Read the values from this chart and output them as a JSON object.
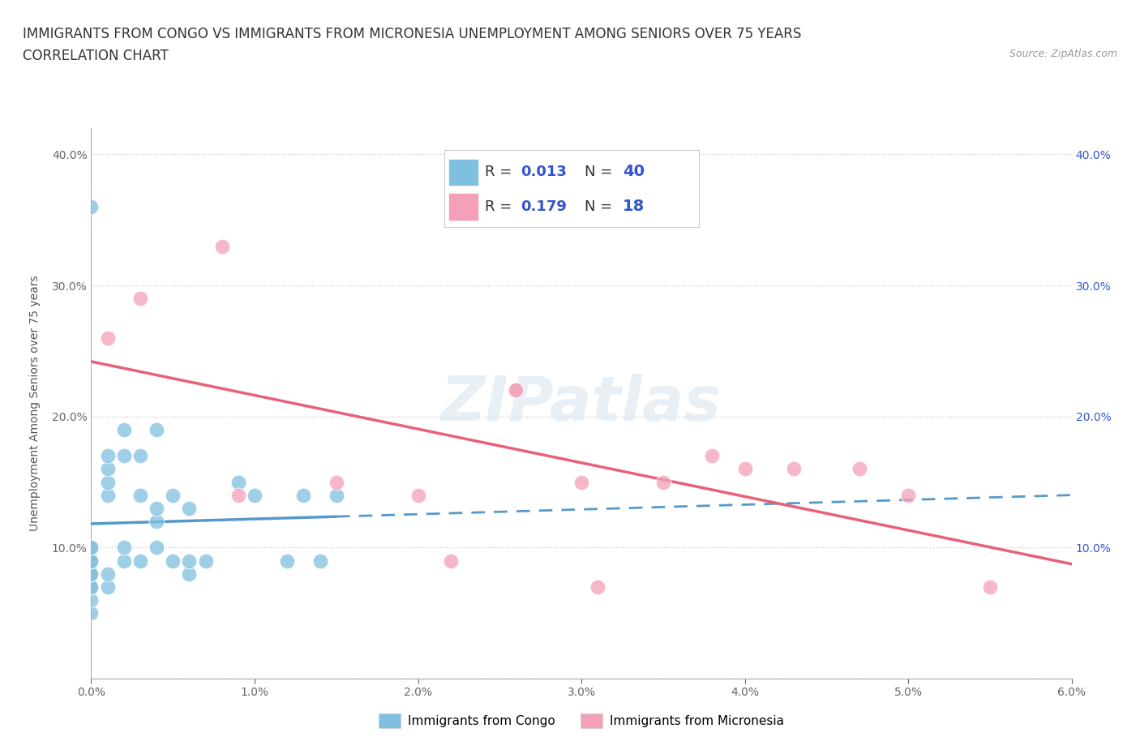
{
  "title_line1": "IMMIGRANTS FROM CONGO VS IMMIGRANTS FROM MICRONESIA UNEMPLOYMENT AMONG SENIORS OVER 75 YEARS",
  "title_line2": "CORRELATION CHART",
  "source_text": "Source: ZipAtlas.com",
  "ylabel": "Unemployment Among Seniors over 75 years",
  "xlim": [
    0.0,
    0.06
  ],
  "ylim": [
    0.0,
    0.42
  ],
  "xticks": [
    0.0,
    0.01,
    0.02,
    0.03,
    0.04,
    0.05,
    0.06
  ],
  "xticklabels": [
    "0.0%",
    "1.0%",
    "2.0%",
    "3.0%",
    "4.0%",
    "5.0%",
    "6.0%"
  ],
  "yticks": [
    0.0,
    0.1,
    0.2,
    0.3,
    0.4
  ],
  "yticklabels": [
    "",
    "10.0%",
    "20.0%",
    "30.0%",
    "40.0%"
  ],
  "right_yticklabels": [
    "",
    "10.0%",
    "20.0%",
    "30.0%",
    "40.0%"
  ],
  "congo_color": "#7fbfdf",
  "micronesia_color": "#f4a0b8",
  "congo_R": 0.013,
  "congo_N": 40,
  "micronesia_R": 0.179,
  "micronesia_N": 18,
  "congo_scatter_x": [
    0.0,
    0.0,
    0.0,
    0.0,
    0.0,
    0.0,
    0.0,
    0.0,
    0.0,
    0.0,
    0.0,
    0.001,
    0.001,
    0.001,
    0.001,
    0.001,
    0.001,
    0.002,
    0.002,
    0.002,
    0.002,
    0.003,
    0.003,
    0.003,
    0.004,
    0.004,
    0.004,
    0.004,
    0.005,
    0.005,
    0.006,
    0.006,
    0.006,
    0.007,
    0.009,
    0.01,
    0.012,
    0.013,
    0.014,
    0.015
  ],
  "congo_scatter_y": [
    0.05,
    0.06,
    0.07,
    0.07,
    0.08,
    0.08,
    0.09,
    0.09,
    0.1,
    0.1,
    0.36,
    0.07,
    0.08,
    0.14,
    0.15,
    0.16,
    0.17,
    0.09,
    0.1,
    0.17,
    0.19,
    0.09,
    0.14,
    0.17,
    0.1,
    0.12,
    0.13,
    0.19,
    0.09,
    0.14,
    0.08,
    0.09,
    0.13,
    0.09,
    0.15,
    0.14,
    0.09,
    0.14,
    0.09,
    0.14
  ],
  "micronesia_scatter_x": [
    0.001,
    0.003,
    0.008,
    0.009,
    0.015,
    0.02,
    0.022,
    0.026,
    0.026,
    0.03,
    0.031,
    0.035,
    0.038,
    0.04,
    0.043,
    0.047,
    0.05,
    0.055
  ],
  "micronesia_scatter_y": [
    0.26,
    0.29,
    0.33,
    0.14,
    0.15,
    0.14,
    0.09,
    0.22,
    0.22,
    0.15,
    0.07,
    0.15,
    0.17,
    0.16,
    0.16,
    0.16,
    0.14,
    0.07
  ],
  "background_color": "#ffffff",
  "grid_color": "#c8c8c8",
  "legend_R_color": "#3355cc",
  "congo_line_color": "#5599cc",
  "micronesia_line_color": "#e8607a",
  "title_fontsize": 12,
  "axis_label_fontsize": 10,
  "tick_fontsize": 10,
  "legend_fontsize": 13
}
